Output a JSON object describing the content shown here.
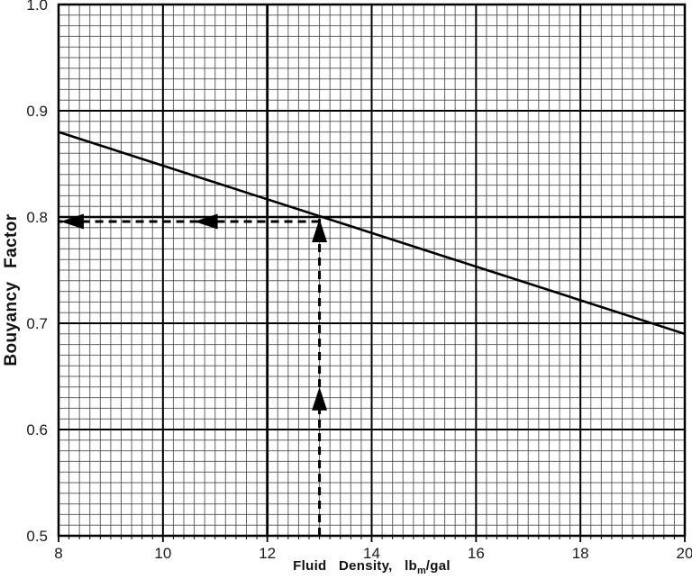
{
  "figure": {
    "background_color": "#ffffff",
    "ink_color": "#000000",
    "minor_grid_color": "#4a4a4a"
  },
  "chart_data": {
    "type": "line",
    "title": "",
    "xlabel": {
      "pre": "Fluid Density, lb",
      "sub": "m",
      "post": "/gal"
    },
    "ylabel": "Bouyancy Factor",
    "xlim": [
      8,
      20
    ],
    "ylim": [
      0.5,
      1.0
    ],
    "x_major_step": 2,
    "x_minor_step": 0.2,
    "y_major_step": 0.1,
    "y_minor_step": 0.01,
    "x_tick_labels": [
      "8",
      "10",
      "12",
      "14",
      "16",
      "18",
      "20"
    ],
    "y_tick_labels": [
      "1.0",
      "0.9",
      "0.8",
      "0.7",
      "0.6",
      "0.5"
    ],
    "grid": "minor+major",
    "legend": "none",
    "series": [
      {
        "name": "buoyancy-factor-line",
        "style": "solid",
        "points": [
          {
            "x": 8,
            "y": 0.88
          },
          {
            "x": 20,
            "y": 0.69
          }
        ]
      }
    ],
    "annotations": {
      "read_x": 13,
      "read_y": 0.8,
      "vertical_guide": {
        "x": 13,
        "from_y": 0.5,
        "to_y": 0.8,
        "style": "dashed",
        "arrow_dir": "up",
        "arrows_at_y": [
          0.8,
          0.64
        ]
      },
      "horizontal_guide": {
        "y": 0.8,
        "from_x": 13,
        "to_x": 8,
        "style": "dashed",
        "arrow_dir": "left",
        "arrows_at_x": [
          8,
          10.6
        ]
      },
      "emphasized_gridline_x": 12,
      "emphasized_gridline_y": 0.8
    }
  }
}
